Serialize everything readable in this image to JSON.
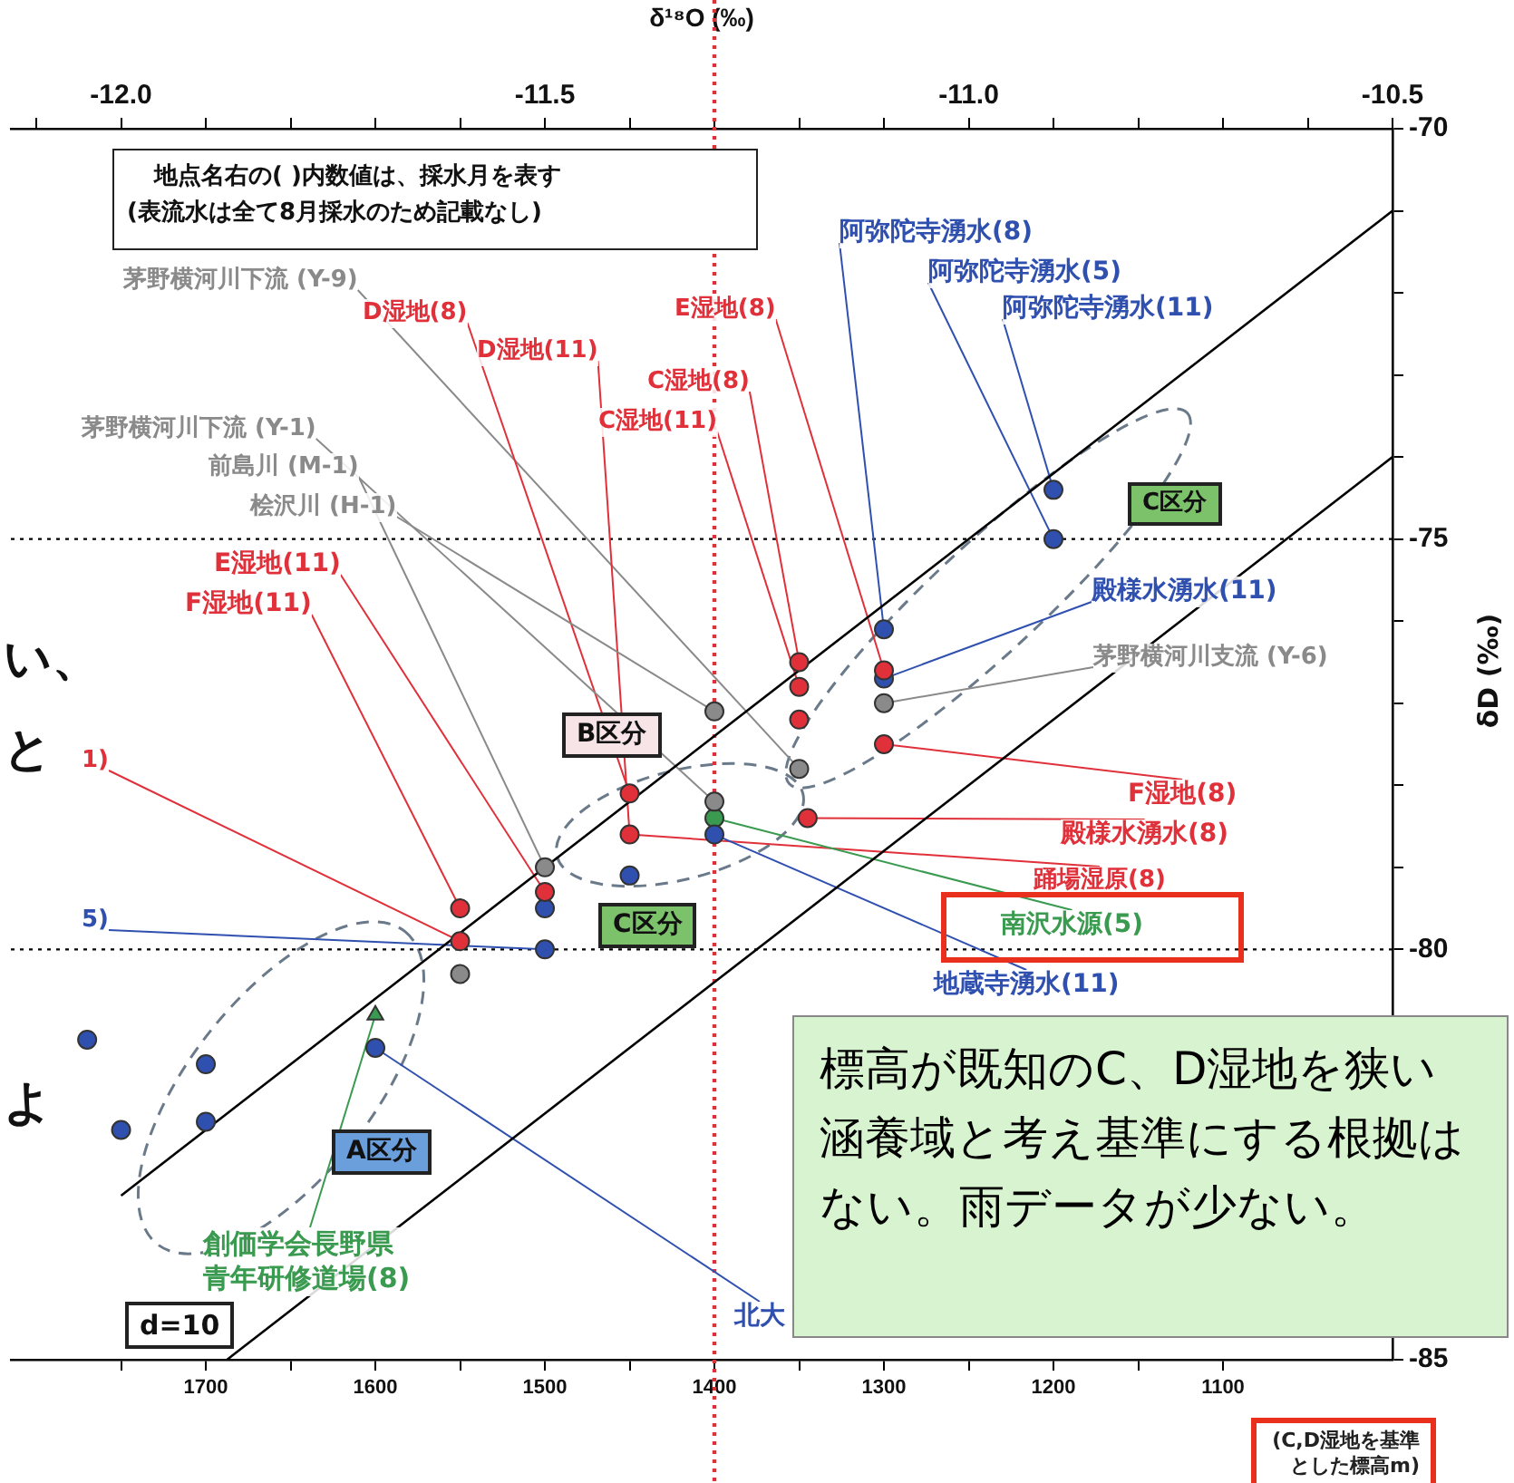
{
  "chart_data": {
    "type": "scatter",
    "xlabel": "δ¹⁸O (‰)",
    "ylabel": "δD (‰)",
    "x2label": "(C,D湿地を基準とした標高m)",
    "xlim": [
      -12.13,
      -10.5
    ],
    "xticks": [
      {
        "value": -12.1,
        "label": null
      },
      {
        "value": -12.0,
        "label": "-12.0"
      },
      {
        "value": -11.9,
        "label": null
      },
      {
        "value": -11.8,
        "label": null
      },
      {
        "value": -11.7,
        "label": null
      },
      {
        "value": -11.6,
        "label": null
      },
      {
        "value": -11.5,
        "label": "-11.5"
      },
      {
        "value": -11.4,
        "label": null
      },
      {
        "value": -11.3,
        "label": null
      },
      {
        "value": -11.2,
        "label": null
      },
      {
        "value": -11.1,
        "label": null
      },
      {
        "value": -11.0,
        "label": "-11.0"
      },
      {
        "value": -10.9,
        "label": null
      },
      {
        "value": -10.8,
        "label": null
      },
      {
        "value": -10.7,
        "label": null
      },
      {
        "value": -10.6,
        "label": null
      },
      {
        "value": -10.5,
        "label": "-10.5"
      }
    ],
    "x2lim": [
      1815,
      1000
    ],
    "x2ticks": [
      {
        "value": 1750,
        "label": null
      },
      1700,
      {
        "value": 1650,
        "label": null
      },
      1600,
      {
        "value": 1550,
        "label": null
      },
      1500,
      {
        "value": 1450,
        "label": null
      },
      1400,
      {
        "value": 1350,
        "label": null
      },
      1300,
      {
        "value": 1250,
        "label": null
      },
      1200,
      {
        "value": 1150,
        "label": null
      },
      1100
    ],
    "ylim": [
      -85,
      -70
    ],
    "yticks": [
      -85,
      {
        "value": -84,
        "label": null
      },
      {
        "value": -83,
        "label": null
      },
      {
        "value": -82,
        "label": null
      },
      {
        "value": -81,
        "label": null
      },
      -80,
      {
        "value": -79,
        "label": null
      },
      {
        "value": -78,
        "label": null
      },
      {
        "value": -77,
        "label": null
      },
      {
        "value": -76,
        "label": null
      },
      -75,
      {
        "value": -74,
        "label": null
      },
      {
        "value": -73,
        "label": null
      },
      {
        "value": -72,
        "label": null
      },
      {
        "value": -71,
        "label": null
      },
      -70
    ],
    "grid": false,
    "legend": false,
    "series": [
      {
        "type": "scatter",
        "marker": "circle",
        "color": "#e0303a",
        "x": [
          -11.2,
          -11.2,
          -11.2,
          -11.1,
          -11.1,
          -11.19,
          -11.4,
          -11.4,
          -11.5,
          -11.6,
          -11.6
        ],
        "values": [
          -76.5,
          -76.8,
          -77.2,
          -76.6,
          -77.5,
          -78.4,
          -78.1,
          -78.6,
          -79.3,
          -79.5,
          -79.9
        ]
      },
      {
        "type": "scatter",
        "marker": "circle",
        "color": "#3050b0",
        "x": [
          -11.1,
          -11.1,
          -10.9,
          -10.9,
          -11.5,
          -11.5,
          -11.4,
          -11.3,
          -11.7,
          -11.9,
          -11.9,
          -12.0,
          -12.04
        ],
        "values": [
          -76.1,
          -76.7,
          -74.4,
          -75.0,
          -79.5,
          -80.0,
          -79.1,
          -78.6,
          -81.2,
          -81.4,
          -82.1,
          -82.2,
          -81.1
        ]
      },
      {
        "type": "scatter",
        "marker": "circle",
        "color": "#8a8a8a",
        "x": [
          -11.1,
          -11.5,
          -11.3,
          -11.6,
          -11.2,
          -11.3
        ],
        "values": [
          -77.0,
          -79.0,
          -78.2,
          -80.3,
          -77.8,
          -77.1
        ]
      },
      {
        "type": "scatter",
        "marker": "triangle",
        "color": "#3a9a50",
        "x": [
          -11.7
        ],
        "values": [
          -80.8
        ]
      },
      {
        "type": "scatter",
        "marker": "circle",
        "color": "#3a9a50",
        "x": [
          -11.3
        ],
        "values": [
          -78.4
        ]
      },
      {
        "type": "line",
        "marker": "none",
        "color": "#000000",
        "x": [
          -11.875,
          -10.5
        ],
        "values": [
          -85,
          -74
        ]
      },
      {
        "type": "line",
        "marker": "none",
        "color": "#000000",
        "x": [
          -12.0,
          -10.5
        ],
        "values": [
          -83,
          -71
        ]
      }
    ],
    "ref_lines": [
      {
        "axis": "y",
        "value": -75,
        "color": "#000000",
        "line_style": "dotted"
      },
      {
        "axis": "y",
        "value": -80,
        "color": "#000000",
        "line_style": "dotted"
      },
      {
        "axis": "x",
        "value": -11.3,
        "color": "#e0303a",
        "line_style": "dotted"
      }
    ],
    "annotations": [
      "地点名右の( )内数値は、採水月を表す",
      "(表流水は全て8月採水のため記載なし)",
      {
        "text": "茅野横河川下流 (Y-9)",
        "x": -11.2,
        "y": -77.8
      },
      {
        "text": "D湿地(8)",
        "x": -11.4,
        "y": -78.1
      },
      {
        "text": "D湿地(11)",
        "x": -11.4,
        "y": -78.6
      },
      {
        "text": "E湿地(8)",
        "x": -11.1,
        "y": -76.6
      },
      {
        "text": "C湿地(8)",
        "x": -11.2,
        "y": -76.5
      },
      {
        "text": "C湿地(11)",
        "x": -11.2,
        "y": -76.8
      },
      {
        "text": "茅野横河川下流 (Y-1)",
        "x": -11.3,
        "y": -78.2
      },
      {
        "text": "前島川 (M-1)",
        "x": -11.5,
        "y": -79.0
      },
      {
        "text": "桧沢川 (H-1)",
        "x": -11.3,
        "y": -77.1
      },
      {
        "text": "E湿地(11)",
        "x": -11.5,
        "y": -79.3
      },
      {
        "text": "F湿地(11)",
        "x": -11.6,
        "y": -79.5
      },
      {
        "text": "阿弥陀寺湧水(8)",
        "x": -11.1,
        "y": -76.1
      },
      {
        "text": "阿弥陀寺湧水(5)",
        "x": -10.9,
        "y": -75.0
      },
      {
        "text": "阿弥陀寺湧水(11)",
        "x": -10.9,
        "y": -74.4
      },
      {
        "text": "殿様水湧水(11)",
        "x": -11.1,
        "y": -76.7
      },
      {
        "text": "茅野横河川支流 (Y-6)",
        "x": -11.1,
        "y": -77.0
      },
      {
        "text": "F湿地(8)",
        "x": -11.1,
        "y": -77.5
      },
      {
        "text": "殿様水湧水(8)",
        "x": -11.19,
        "y": -78.4
      },
      {
        "text": "踊場湿原(8)",
        "x": -11.4,
        "y": -78.6
      },
      {
        "text": "南沢水源(5)",
        "x": -11.3,
        "y": -78.4
      },
      {
        "text": "地蔵寺湧水(11)",
        "x": -11.3,
        "y": -78.6
      },
      {
        "text": "北大",
        "x": -11.7,
        "y": -81.2
      },
      {
        "text": "創価学会長野県青年研修道場(8)",
        "x": -11.7,
        "y": -80.8
      },
      "A区分",
      "B区分",
      "C区分",
      "C区分",
      "d=10",
      {
        "text": "1)",
        "x": -11.6,
        "y": -79.9
      },
      {
        "text": "5)",
        "x": -11.5,
        "y": -80.0
      },
      "標高が既知のC、D湿地を狭い涵養域と考え基準にする根拠はない。雨データが少ない。",
      "い、",
      "と",
      "よ"
    ]
  }
}
